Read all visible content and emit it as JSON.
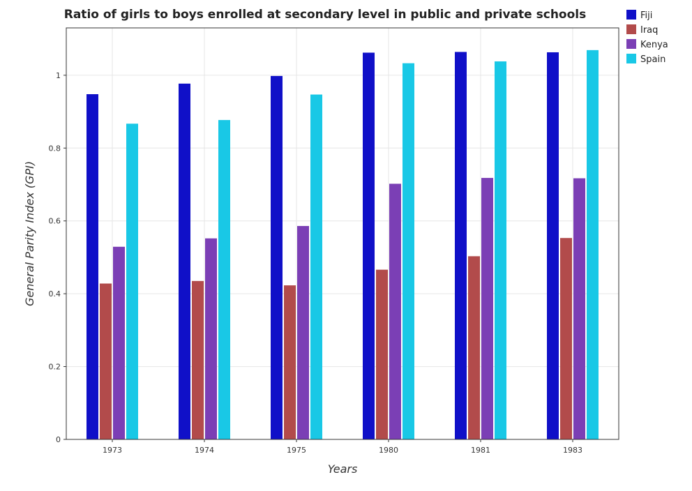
{
  "chart_data": {
    "type": "bar",
    "title": "Ratio of girls to boys enrolled at secondary level in public and private schools",
    "xlabel": "Years",
    "ylabel": "General Parity Index (GPI)",
    "categories": [
      "1973",
      "1974",
      "1975",
      "1980",
      "1981",
      "1983"
    ],
    "ylim": [
      0,
      1.13
    ],
    "yticks": [
      0,
      0.2,
      0.4,
      0.6,
      0.8,
      1
    ],
    "ytick_labels": [
      "0",
      "0.2",
      "0.4",
      "0.6",
      "0.8",
      "1"
    ],
    "grid": true,
    "legend_position": "top-right",
    "series": [
      {
        "name": "Fiji",
        "color": "#1010c8",
        "values": [
          0.948,
          0.977,
          0.998,
          1.062,
          1.064,
          1.063
        ]
      },
      {
        "name": "Iraq",
        "color": "#b24b4b",
        "values": [
          0.428,
          0.435,
          0.423,
          0.466,
          0.503,
          0.553
        ]
      },
      {
        "name": "Kenya",
        "color": "#7b3fb5",
        "values": [
          0.529,
          0.552,
          0.586,
          0.702,
          0.718,
          0.717
        ]
      },
      {
        "name": "Spain",
        "color": "#19c8e6",
        "values": [
          0.867,
          0.877,
          0.947,
          1.033,
          1.038,
          1.069
        ]
      }
    ]
  }
}
